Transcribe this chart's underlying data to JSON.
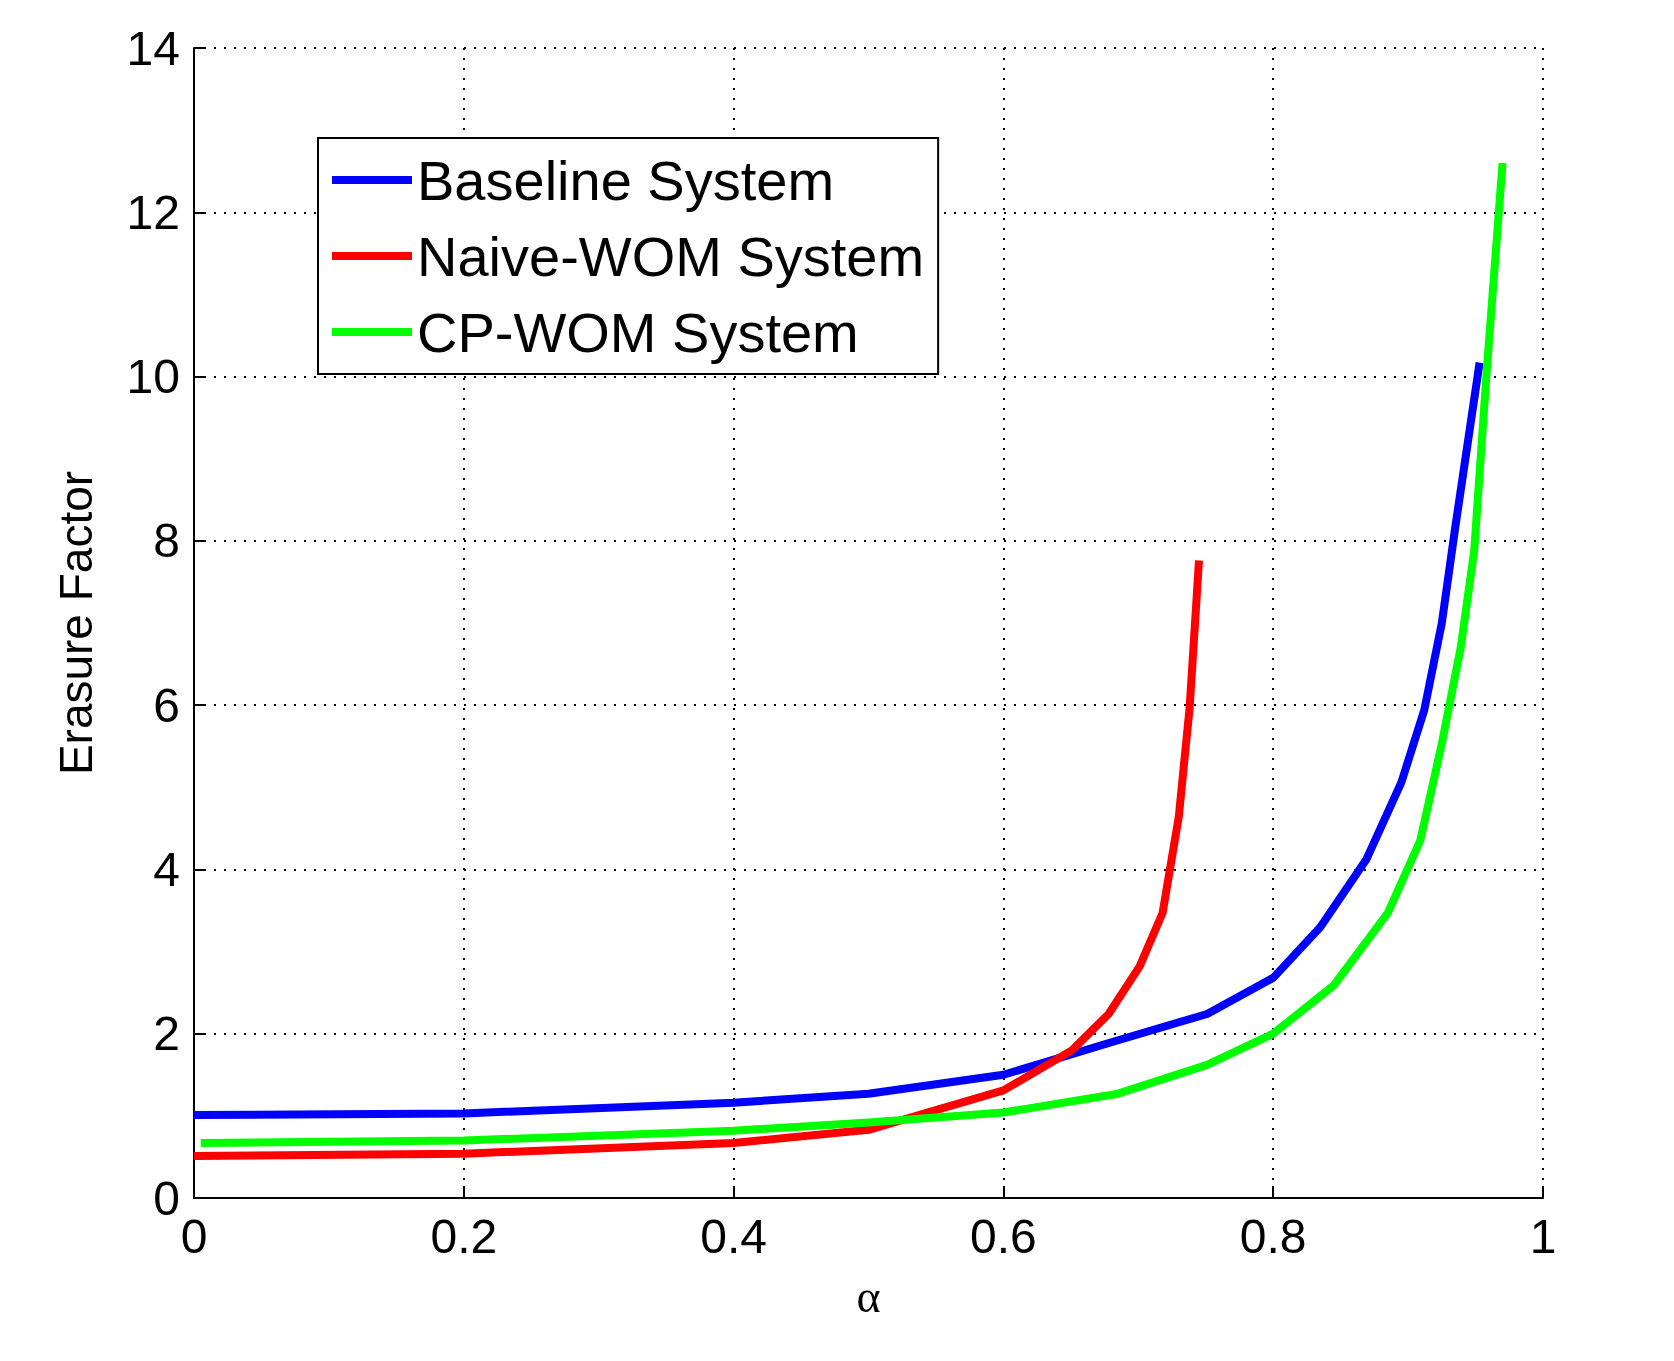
{
  "chart_data": {
    "type": "line",
    "xlabel": "α",
    "ylabel": "Erasure Factor",
    "xlim": [
      0,
      1
    ],
    "ylim": [
      0,
      14
    ],
    "xticks": [
      0,
      0.2,
      0.4,
      0.6,
      0.8,
      1
    ],
    "yticks": [
      0,
      2,
      4,
      6,
      8,
      10,
      12,
      14
    ],
    "grid": true,
    "legend": "top left",
    "line_style": "solid",
    "marker": "none",
    "series": [
      {
        "name": "Baseline System",
        "color": "#0000ff",
        "x": [
          0,
          0.2,
          0.4,
          0.5,
          0.6,
          0.685,
          0.751,
          0.8,
          0.835,
          0.869,
          0.895,
          0.912,
          0.925,
          0.935,
          0.953
        ],
        "values": [
          1.01,
          1.03,
          1.16,
          1.27,
          1.5,
          1.92,
          2.24,
          2.68,
          3.3,
          4.12,
          5.06,
          5.94,
          7.0,
          8.17,
          10.17
        ]
      },
      {
        "name": "Naive-WOM System",
        "color": "#ff0000",
        "x": [
          0,
          0.2,
          0.4,
          0.5,
          0.6,
          0.651,
          0.678,
          0.701,
          0.718,
          0.73,
          0.738,
          0.745
        ],
        "values": [
          0.51,
          0.54,
          0.67,
          0.83,
          1.31,
          1.8,
          2.24,
          2.82,
          3.47,
          4.64,
          5.96,
          7.76
        ]
      },
      {
        "name": "CP-WOM System",
        "color": "#00ff00",
        "x": [
          0.005,
          0.2,
          0.4,
          0.5,
          0.6,
          0.685,
          0.751,
          0.8,
          0.845,
          0.885,
          0.909,
          0.925,
          0.939,
          0.949,
          0.958,
          0.97
        ],
        "values": [
          0.67,
          0.7,
          0.82,
          0.92,
          1.04,
          1.27,
          1.62,
          2.0,
          2.59,
          3.47,
          4.35,
          5.53,
          6.7,
          7.88,
          10.0,
          12.6
        ]
      }
    ]
  }
}
